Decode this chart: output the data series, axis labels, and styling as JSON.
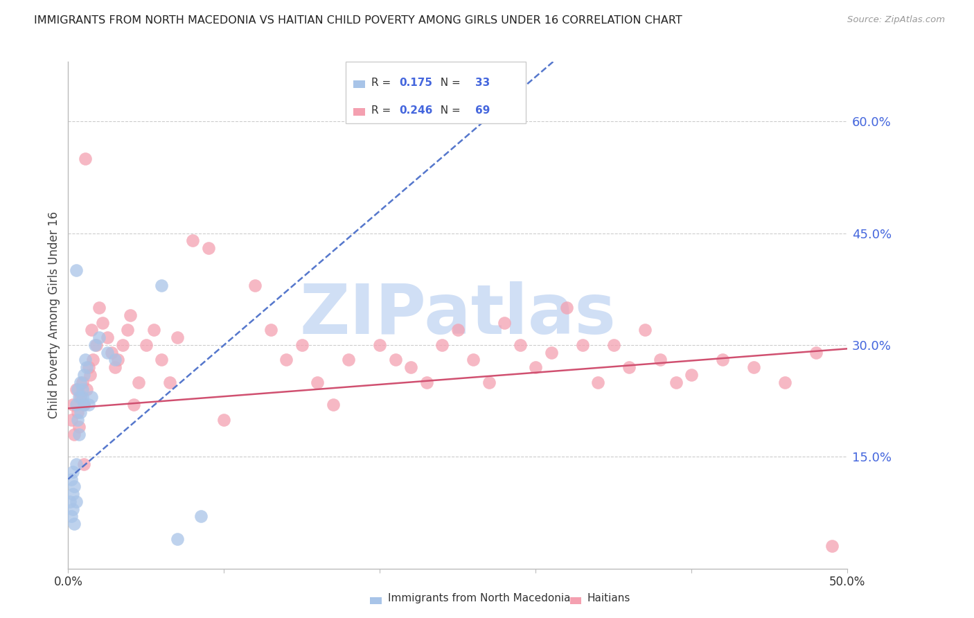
{
  "title": "IMMIGRANTS FROM NORTH MACEDONIA VS HAITIAN CHILD POVERTY AMONG GIRLS UNDER 16 CORRELATION CHART",
  "source": "Source: ZipAtlas.com",
  "ylabel": "Child Poverty Among Girls Under 16",
  "xlim": [
    0.0,
    0.5
  ],
  "ylim": [
    0.0,
    0.68
  ],
  "xtick_vals": [
    0.0,
    0.1,
    0.2,
    0.3,
    0.4,
    0.5
  ],
  "xtick_labels": [
    "0.0%",
    "",
    "",
    "",
    "",
    "50.0%"
  ],
  "ytick_vals_right": [
    0.15,
    0.3,
    0.45,
    0.6
  ],
  "ytick_labels_right": [
    "15.0%",
    "30.0%",
    "45.0%",
    "60.0%"
  ],
  "blue_color": "#A8C4E8",
  "pink_color": "#F4A0B0",
  "blue_line_color": "#5577CC",
  "pink_line_color": "#D05070",
  "axis_color": "#BBBBBB",
  "grid_color": "#CCCCCC",
  "title_color": "#222222",
  "source_color": "#999999",
  "ylabel_color": "#444444",
  "right_tick_color": "#4466DD",
  "watermark_color": "#D0DFF5",
  "watermark_text": "ZIPatlas",
  "legend_r1": "0.175",
  "legend_n1": "33",
  "legend_r2": "0.246",
  "legend_n2": "69",
  "blue_x": [
    0.001,
    0.002,
    0.002,
    0.003,
    0.003,
    0.003,
    0.004,
    0.004,
    0.005,
    0.005,
    0.005,
    0.006,
    0.006,
    0.007,
    0.007,
    0.008,
    0.008,
    0.009,
    0.009,
    0.01,
    0.01,
    0.011,
    0.012,
    0.013,
    0.015,
    0.017,
    0.02,
    0.025,
    0.03,
    0.06,
    0.07,
    0.085,
    0.005
  ],
  "blue_y": [
    0.09,
    0.07,
    0.12,
    0.1,
    0.13,
    0.08,
    0.11,
    0.06,
    0.14,
    0.09,
    0.22,
    0.24,
    0.2,
    0.18,
    0.23,
    0.21,
    0.25,
    0.23,
    0.24,
    0.22,
    0.26,
    0.28,
    0.27,
    0.22,
    0.23,
    0.3,
    0.31,
    0.29,
    0.28,
    0.38,
    0.04,
    0.07,
    0.4
  ],
  "pink_x": [
    0.002,
    0.003,
    0.004,
    0.005,
    0.006,
    0.007,
    0.008,
    0.009,
    0.01,
    0.011,
    0.012,
    0.013,
    0.014,
    0.015,
    0.016,
    0.018,
    0.02,
    0.022,
    0.025,
    0.028,
    0.03,
    0.032,
    0.035,
    0.038,
    0.04,
    0.042,
    0.045,
    0.05,
    0.055,
    0.06,
    0.065,
    0.07,
    0.08,
    0.09,
    0.1,
    0.12,
    0.13,
    0.14,
    0.15,
    0.16,
    0.17,
    0.18,
    0.2,
    0.21,
    0.22,
    0.23,
    0.24,
    0.25,
    0.26,
    0.27,
    0.28,
    0.29,
    0.3,
    0.31,
    0.32,
    0.33,
    0.34,
    0.35,
    0.36,
    0.37,
    0.38,
    0.39,
    0.4,
    0.42,
    0.44,
    0.46,
    0.48,
    0.49,
    0.01
  ],
  "pink_y": [
    0.2,
    0.22,
    0.18,
    0.24,
    0.21,
    0.19,
    0.23,
    0.25,
    0.22,
    0.55,
    0.24,
    0.27,
    0.26,
    0.32,
    0.28,
    0.3,
    0.35,
    0.33,
    0.31,
    0.29,
    0.27,
    0.28,
    0.3,
    0.32,
    0.34,
    0.22,
    0.25,
    0.3,
    0.32,
    0.28,
    0.25,
    0.31,
    0.44,
    0.43,
    0.2,
    0.38,
    0.32,
    0.28,
    0.3,
    0.25,
    0.22,
    0.28,
    0.3,
    0.28,
    0.27,
    0.25,
    0.3,
    0.32,
    0.28,
    0.25,
    0.33,
    0.3,
    0.27,
    0.29,
    0.35,
    0.3,
    0.25,
    0.3,
    0.27,
    0.32,
    0.28,
    0.25,
    0.26,
    0.28,
    0.27,
    0.25,
    0.29,
    0.03,
    0.14
  ]
}
